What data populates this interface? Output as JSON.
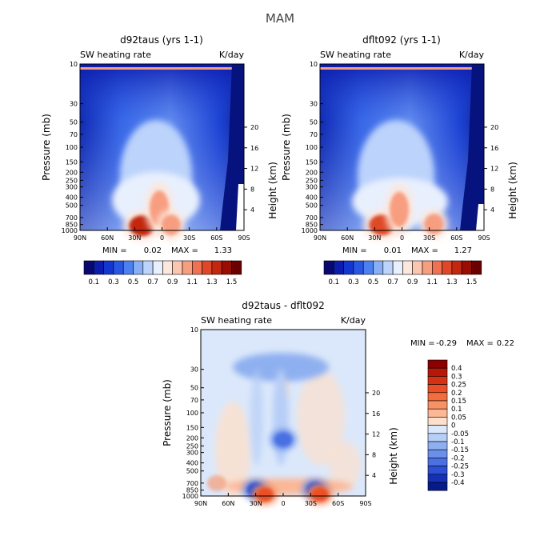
{
  "figure": {
    "title": "MAM"
  },
  "units": {
    "variable": "SW heating rate",
    "unit": "K/day"
  },
  "axes": {
    "pressure_label": "Pressure (mb)",
    "height_label": "Height (km)",
    "pressure_ticks": [
      "10",
      "30",
      "50",
      "70",
      "100",
      "150",
      "200",
      "250",
      "300",
      "400",
      "500",
      "700",
      "850",
      "1000"
    ],
    "height_ticks": [
      "20",
      "16",
      "12",
      "8",
      "4"
    ],
    "lat_ticks": [
      "90N",
      "60N",
      "30N",
      "0",
      "30S",
      "60S",
      "90S"
    ]
  },
  "chart_data": [
    {
      "id": "panel1",
      "type": "heatmap",
      "title": "d92taus (yrs 1-1)",
      "subtitle_left": "SW heating rate",
      "subtitle_right": "K/day",
      "min_label": "MIN =",
      "min_value": "0.02",
      "max_label": "MAX =",
      "max_value": "1.33",
      "x_range": [
        90,
        -90
      ],
      "y_range_mb": [
        1000,
        10
      ],
      "blobs": [
        {
          "lat": 22,
          "p": 880,
          "value": 1.33
        },
        {
          "lat": 3,
          "p": 540,
          "value": 1.0
        },
        {
          "lat": -10,
          "p": 860,
          "value": 1.05
        }
      ],
      "legend": {
        "colors": [
          "#08086f",
          "#0c1cad",
          "#1436d0",
          "#2857e4",
          "#4c7ff0",
          "#8aaef6",
          "#bcd3fb",
          "#e8f0fe",
          "#fde6da",
          "#fbc6ae",
          "#f79e80",
          "#ef7152",
          "#de4828",
          "#c22710",
          "#9a0c04",
          "#6a0000"
        ],
        "labels": [
          "0.1",
          "0.3",
          "0.5",
          "0.7",
          "0.9",
          "1.1",
          "1.3",
          "1.5"
        ]
      }
    },
    {
      "id": "panel2",
      "type": "heatmap",
      "title": "dflt092 (yrs 1-1)",
      "subtitle_left": "SW heating rate",
      "subtitle_right": "K/day",
      "min_label": "MIN =",
      "min_value": "0.01",
      "max_label": "MAX =",
      "max_value": "1.27",
      "x_range": [
        90,
        -90
      ],
      "y_range_mb": [
        1000,
        10
      ],
      "blobs": [
        {
          "lat": 22,
          "p": 860,
          "value": 1.27
        },
        {
          "lat": 3,
          "p": 560,
          "value": 1.0
        },
        {
          "lat": -35,
          "p": 840,
          "value": 1.05
        }
      ],
      "legend": {
        "colors": [
          "#08086f",
          "#0c1cad",
          "#1436d0",
          "#2857e4",
          "#4c7ff0",
          "#8aaef6",
          "#bcd3fb",
          "#e8f0fe",
          "#fde6da",
          "#fbc6ae",
          "#f79e80",
          "#ef7152",
          "#de4828",
          "#c22710",
          "#9a0c04",
          "#6a0000"
        ],
        "labels": [
          "0.1",
          "0.3",
          "0.5",
          "0.7",
          "0.9",
          "1.1",
          "1.3",
          "1.5"
        ]
      }
    },
    {
      "id": "panel3",
      "type": "heatmap",
      "title": "d92taus - dflt092",
      "subtitle_left": "SW heating rate",
      "subtitle_right": "K/day",
      "min_label": "MIN =",
      "min_value": "-0.29",
      "max_label": "MAX =",
      "max_value": "0.22",
      "x_range": [
        90,
        -90
      ],
      "y_range_mb": [
        1000,
        10
      ],
      "blobs": [
        {
          "lat": 30,
          "p": 840,
          "value": -0.29
        },
        {
          "lat": -35,
          "p": 830,
          "value": -0.27
        },
        {
          "lat": 0,
          "p": 210,
          "value": -0.22
        },
        {
          "lat": 20,
          "p": 960,
          "value": 0.22
        },
        {
          "lat": -40,
          "p": 955,
          "value": 0.2
        }
      ],
      "legend": {
        "colors": [
          "#8b0000",
          "#b81607",
          "#d73114",
          "#ea4f26",
          "#f36e3e",
          "#f89265",
          "#fbb796",
          "#fde0cc",
          "#dbe8fb",
          "#b7cef6",
          "#8fb0f0",
          "#6a90ea",
          "#4a70e2",
          "#2c4fd3",
          "#1530b4",
          "#061a8c"
        ],
        "labels": [
          "0.4",
          "0.3",
          "0.25",
          "0.2",
          "0.15",
          "0.1",
          "0.05",
          "0",
          "-0.05",
          "-0.1",
          "-0.15",
          "-0.2",
          "-0.25",
          "-0.3",
          "-0.4"
        ]
      }
    }
  ]
}
